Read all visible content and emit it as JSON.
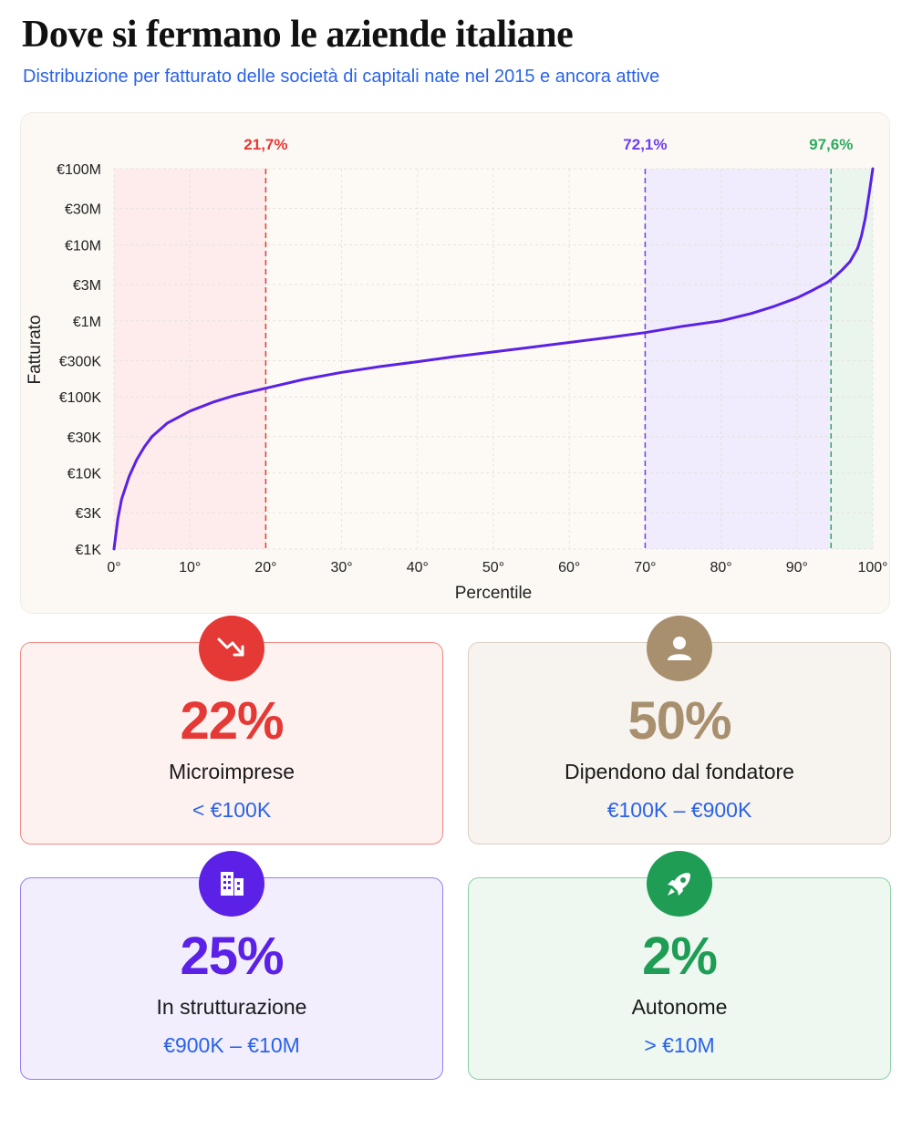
{
  "header": {
    "title": "Dove si fermano le aziende italiane",
    "subtitle": "Distribuzione per fatturato delle società di capitali nate nel 2015 e ancora attive"
  },
  "chart_data": {
    "type": "line",
    "xlabel": "Percentile",
    "ylabel": "Fatturato",
    "y_scale": "log",
    "xlim": [
      0,
      100
    ],
    "ylim": [
      1000,
      100000000
    ],
    "x_ticks": [
      "0°",
      "10°",
      "20°",
      "30°",
      "40°",
      "50°",
      "60°",
      "70°",
      "80°",
      "90°",
      "100°"
    ],
    "y_ticks": [
      {
        "value": 1000,
        "label": "€1K"
      },
      {
        "value": 3000,
        "label": "€3K"
      },
      {
        "value": 10000,
        "label": "€10K"
      },
      {
        "value": 30000,
        "label": "€30K"
      },
      {
        "value": 100000,
        "label": "€100K"
      },
      {
        "value": 300000,
        "label": "€300K"
      },
      {
        "value": 1000000,
        "label": "€1M"
      },
      {
        "value": 3000000,
        "label": "€3M"
      },
      {
        "value": 10000000,
        "label": "€10M"
      },
      {
        "value": 30000000,
        "label": "€30M"
      },
      {
        "value": 100000000,
        "label": "€100M"
      }
    ],
    "grid": true,
    "series": [
      {
        "color": "#5b21e6",
        "x": [
          0,
          0.5,
          1,
          2,
          3,
          4,
          5,
          7,
          10,
          13,
          16,
          20,
          25,
          30,
          35,
          40,
          45,
          50,
          55,
          60,
          65,
          70,
          75,
          80,
          84,
          87,
          90,
          92,
          94,
          95,
          96,
          97,
          98,
          98.5,
          99,
          99.5,
          100
        ],
        "y": [
          1000,
          2500,
          4500,
          9000,
          15000,
          22000,
          30000,
          45000,
          65000,
          85000,
          105000,
          130000,
          170000,
          210000,
          250000,
          290000,
          340000,
          390000,
          450000,
          520000,
          600000,
          700000,
          850000,
          1000000,
          1250000,
          1550000,
          2000000,
          2500000,
          3200000,
          3800000,
          4700000,
          6000000,
          9000000,
          13000000,
          22000000,
          45000000,
          100000000
        ]
      }
    ],
    "thresholds": [
      {
        "x": 20,
        "label": "21,7%",
        "color": "#e53935"
      },
      {
        "x": 70,
        "label": "72,1%",
        "color": "#6d3ff0"
      },
      {
        "x": 94.5,
        "label": "97,6%",
        "color": "#2eaa5e"
      }
    ],
    "shaded_bands": [
      {
        "from": 0,
        "to": 20,
        "color": "#fdeceb"
      },
      {
        "from": 70,
        "to": 94.5,
        "color": "#f0ebfd"
      },
      {
        "from": 94.5,
        "to": 100,
        "color": "#eaf5ee"
      }
    ]
  },
  "stats": [
    {
      "value": "22%",
      "label": "Microimprese",
      "range": "< €100K",
      "icon": "trending-down-icon",
      "accent": "#e53935"
    },
    {
      "value": "50%",
      "label": "Dipendono dal fondatore",
      "range": "€100K – €900K",
      "icon": "person-icon",
      "accent": "#a8906f"
    },
    {
      "value": "25%",
      "label": "In strutturazione",
      "range": "€900K – €10M",
      "icon": "building-icon",
      "accent": "#5b21e6"
    },
    {
      "value": "2%",
      "label": "Autonome",
      "range": "> €10M",
      "icon": "rocket-icon",
      "accent": "#1f9d55"
    }
  ]
}
